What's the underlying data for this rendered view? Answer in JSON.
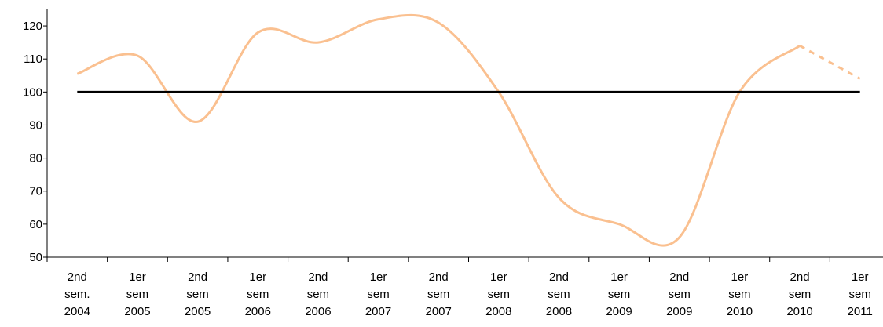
{
  "chart_data": {
    "type": "line",
    "categories": [
      "2nd sem. 2004",
      "1er sem 2005",
      "2nd sem 2005",
      "1er sem 2006",
      "2nd sem 2006",
      "1er sem 2007",
      "2nd sem 2007",
      "1er sem 2008",
      "2nd sem 2008",
      "1er sem 2009",
      "2nd sem 2009",
      "1er sem 2010",
      "2nd sem 2010",
      "1er sem 2011"
    ],
    "series": [
      {
        "color": "#fac090",
        "values": [
          105.5,
          111,
          91,
          118,
          115,
          122,
          121,
          100,
          68,
          60,
          56,
          100,
          114,
          104
        ],
        "dashed_last": true
      },
      {
        "color": "#000000",
        "values": [
          100,
          100,
          100,
          100,
          100,
          100,
          100,
          100,
          100,
          100,
          100,
          100,
          100,
          100
        ]
      }
    ],
    "ylim": [
      50,
      125
    ],
    "yticks": [
      50,
      60,
      70,
      80,
      90,
      100,
      110,
      120
    ],
    "grid": false
  }
}
